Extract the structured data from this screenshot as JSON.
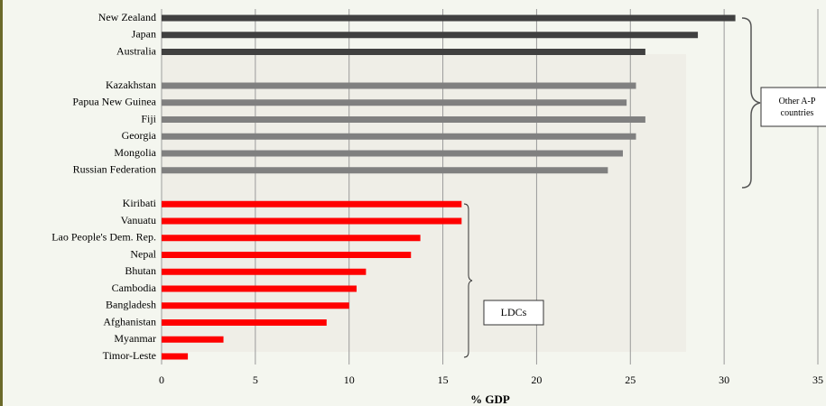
{
  "chart_data": {
    "type": "bar",
    "orientation": "horizontal",
    "categories": [
      "New Zealand",
      "Japan",
      "Australia",
      null,
      "Kazakhstan",
      "Papua New Guinea",
      "Fiji",
      "Georgia",
      "Mongolia",
      "Russian Federation",
      null,
      "Kiribati",
      "Vanuatu",
      "Lao People's Dem. Rep.",
      "Nepal",
      "Bhutan",
      "Cambodia",
      "Bangladesh",
      "Afghanistan",
      "Myanmar",
      "Timor-Leste"
    ],
    "values": [
      30.6,
      28.6,
      25.8,
      null,
      25.3,
      24.8,
      25.8,
      25.3,
      24.6,
      23.8,
      null,
      16.0,
      16.0,
      13.8,
      13.3,
      10.9,
      10.4,
      10.0,
      8.8,
      3.3,
      1.4
    ],
    "colors": [
      "#404040",
      "#404040",
      "#404040",
      null,
      "#808080",
      "#808080",
      "#808080",
      "#808080",
      "#808080",
      "#808080",
      null,
      "#ff0000",
      "#ff0000",
      "#ff0000",
      "#ff0000",
      "#ff0000",
      "#ff0000",
      "#ff0000",
      "#ff0000",
      "#ff0000",
      "#ff0000"
    ],
    "xlabel": "% GDP",
    "xlim": [
      0,
      35
    ],
    "xticks": [
      0,
      5,
      10,
      15,
      20,
      25,
      30,
      35
    ],
    "grid": true,
    "annotations": [
      "Other A-P countries",
      "LDCs"
    ]
  }
}
